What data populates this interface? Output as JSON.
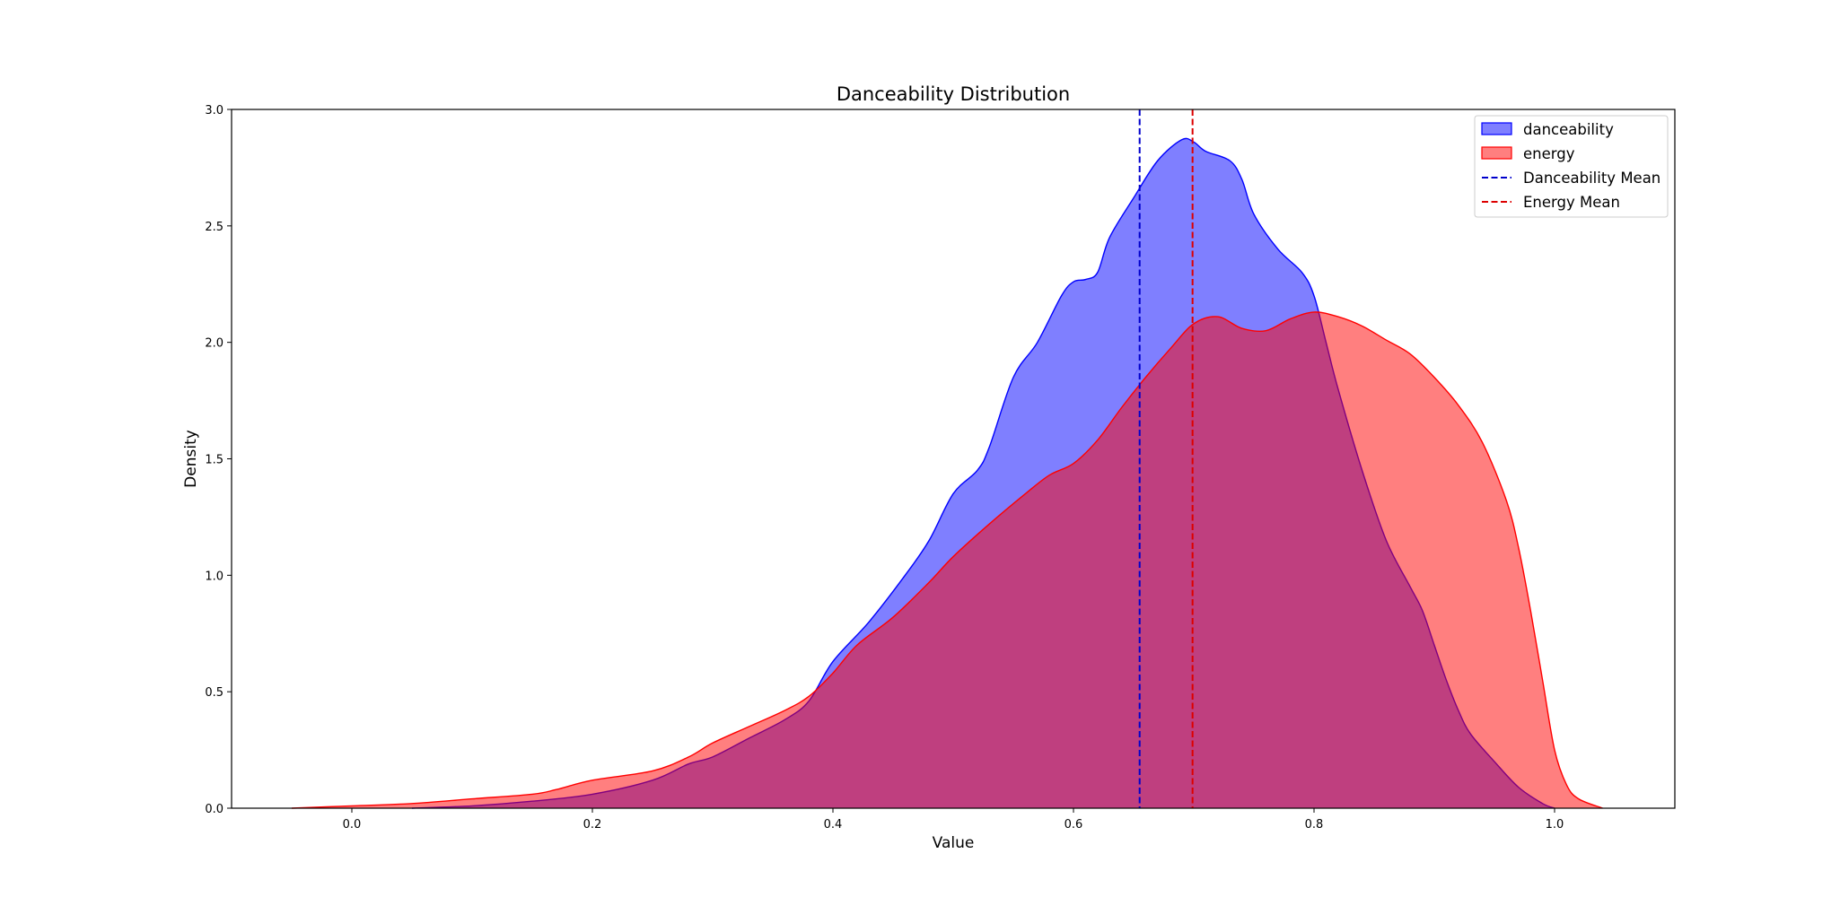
{
  "chart_data": {
    "type": "area",
    "title": "Danceability Distribution",
    "xlabel": "Value",
    "ylabel": "Density",
    "xlim": [
      -0.1,
      1.1
    ],
    "ylim": [
      0,
      3.0
    ],
    "xticks": [
      "0.0",
      "0.2",
      "0.4",
      "0.6",
      "0.8",
      "1.0"
    ],
    "yticks": [
      "0.0",
      "0.5",
      "1.0",
      "1.5",
      "2.0",
      "2.5",
      "3.0"
    ],
    "grid": false,
    "legend_position": "top-right",
    "series": [
      {
        "name": "danceability",
        "kind": "density",
        "color": "#0000ff",
        "fill_opacity": 0.5,
        "x": [
          0.05,
          0.1,
          0.15,
          0.2,
          0.25,
          0.28,
          0.3,
          0.33,
          0.36,
          0.38,
          0.4,
          0.43,
          0.46,
          0.48,
          0.5,
          0.52,
          0.53,
          0.55,
          0.57,
          0.59,
          0.6,
          0.61,
          0.62,
          0.63,
          0.65,
          0.67,
          0.69,
          0.7,
          0.71,
          0.73,
          0.74,
          0.75,
          0.77,
          0.79,
          0.8,
          0.81,
          0.82,
          0.84,
          0.86,
          0.88,
          0.89,
          0.9,
          0.91,
          0.92,
          0.93,
          0.95,
          0.97,
          0.99,
          1.0
        ],
        "y": [
          0.0,
          0.01,
          0.03,
          0.06,
          0.12,
          0.19,
          0.22,
          0.3,
          0.38,
          0.46,
          0.63,
          0.8,
          1.0,
          1.15,
          1.35,
          1.45,
          1.55,
          1.85,
          2.0,
          2.2,
          2.26,
          2.27,
          2.3,
          2.45,
          2.62,
          2.78,
          2.87,
          2.86,
          2.82,
          2.78,
          2.7,
          2.55,
          2.4,
          2.3,
          2.2,
          2.0,
          1.8,
          1.45,
          1.15,
          0.95,
          0.85,
          0.7,
          0.55,
          0.42,
          0.32,
          0.2,
          0.09,
          0.02,
          0.0
        ]
      },
      {
        "name": "energy",
        "kind": "density",
        "color": "#ff0000",
        "fill_opacity": 0.5,
        "x": [
          -0.05,
          0.0,
          0.05,
          0.1,
          0.15,
          0.17,
          0.2,
          0.25,
          0.28,
          0.3,
          0.33,
          0.36,
          0.38,
          0.4,
          0.42,
          0.45,
          0.48,
          0.5,
          0.53,
          0.56,
          0.58,
          0.6,
          0.62,
          0.64,
          0.66,
          0.68,
          0.7,
          0.72,
          0.74,
          0.76,
          0.78,
          0.8,
          0.82,
          0.84,
          0.86,
          0.88,
          0.9,
          0.92,
          0.94,
          0.96,
          0.97,
          0.98,
          0.99,
          1.0,
          1.01,
          1.02,
          1.04
        ],
        "y": [
          0.0,
          0.01,
          0.02,
          0.04,
          0.06,
          0.08,
          0.12,
          0.16,
          0.22,
          0.28,
          0.35,
          0.42,
          0.48,
          0.58,
          0.7,
          0.82,
          0.97,
          1.08,
          1.22,
          1.35,
          1.43,
          1.48,
          1.58,
          1.72,
          1.85,
          1.97,
          2.08,
          2.11,
          2.06,
          2.05,
          2.1,
          2.13,
          2.11,
          2.07,
          2.01,
          1.95,
          1.85,
          1.73,
          1.57,
          1.32,
          1.12,
          0.85,
          0.55,
          0.25,
          0.1,
          0.04,
          0.0
        ]
      },
      {
        "name": "Danceability Mean",
        "kind": "vline",
        "color": "#0000cc",
        "value": 0.655
      },
      {
        "name": "Energy Mean",
        "kind": "vline",
        "color": "#dd0000",
        "value": 0.699
      }
    ]
  }
}
